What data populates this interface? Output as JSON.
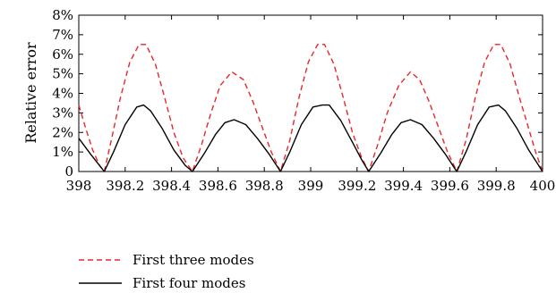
{
  "chart_data": {
    "type": "line",
    "title": "",
    "xlabel": "",
    "ylabel": "Relative error",
    "xlim": [
      398,
      400
    ],
    "ylim": [
      0,
      8
    ],
    "grid": false,
    "legend_position": "bottom-left",
    "x_ticks": [
      "398",
      "398.2",
      "398.4",
      "398.6",
      "398.8",
      "399",
      "399.2",
      "399.4",
      "399.6",
      "399.8",
      "400"
    ],
    "y_ticks": [
      "0",
      "1%",
      "2%",
      "3%",
      "4%",
      "5%",
      "6%",
      "7%",
      "8%"
    ],
    "series": [
      {
        "name": "First three modes",
        "color": "#e8272a",
        "style": "dashed",
        "x": [
          398.0,
          398.03,
          398.06,
          398.09,
          398.11,
          398.14,
          398.18,
          398.22,
          398.26,
          398.29,
          398.33,
          398.37,
          398.41,
          398.45,
          398.49,
          398.53,
          398.57,
          398.61,
          398.66,
          398.71,
          398.75,
          398.79,
          398.83,
          398.87,
          398.91,
          398.95,
          398.99,
          399.03,
          399.06,
          399.1,
          399.14,
          399.18,
          399.22,
          399.25,
          399.29,
          399.33,
          399.38,
          399.43,
          399.47,
          399.51,
          399.55,
          399.59,
          399.63,
          399.67,
          399.71,
          399.75,
          399.79,
          399.82,
          399.86,
          399.9,
          399.94,
          399.97,
          400.0
        ],
        "y": [
          3.4,
          2.2,
          1.1,
          0.3,
          0.0,
          1.6,
          3.8,
          5.6,
          6.5,
          6.5,
          5.5,
          3.8,
          2.0,
          0.7,
          0.0,
          1.4,
          3.0,
          4.4,
          5.1,
          4.7,
          3.6,
          2.3,
          1.0,
          0.0,
          1.6,
          3.8,
          5.6,
          6.5,
          6.5,
          5.5,
          3.8,
          2.0,
          0.7,
          0.0,
          1.4,
          3.0,
          4.4,
          5.1,
          4.7,
          3.6,
          2.3,
          1.0,
          0.0,
          1.6,
          3.8,
          5.6,
          6.5,
          6.5,
          5.5,
          3.8,
          2.2,
          1.0,
          0.0
        ]
      },
      {
        "name": "First four modes",
        "color": "#000000",
        "style": "solid",
        "x": [
          398.0,
          398.05,
          398.09,
          398.11,
          398.15,
          398.2,
          398.25,
          398.28,
          398.31,
          398.36,
          398.41,
          398.46,
          398.49,
          398.54,
          398.59,
          398.63,
          398.67,
          398.72,
          398.77,
          398.82,
          398.87,
          398.91,
          398.96,
          399.01,
          399.05,
          399.08,
          399.13,
          399.18,
          399.22,
          399.25,
          399.3,
          399.35,
          399.39,
          399.43,
          399.48,
          399.53,
          399.58,
          399.63,
          399.67,
          399.72,
          399.77,
          399.81,
          399.84,
          399.89,
          399.94,
          400.0
        ],
        "y": [
          1.7,
          0.9,
          0.3,
          0.0,
          1.0,
          2.4,
          3.3,
          3.4,
          3.1,
          2.2,
          1.1,
          0.3,
          0.0,
          0.9,
          1.9,
          2.5,
          2.65,
          2.4,
          1.7,
          0.9,
          0.0,
          1.0,
          2.4,
          3.3,
          3.4,
          3.4,
          2.6,
          1.5,
          0.6,
          0.0,
          0.9,
          1.9,
          2.5,
          2.65,
          2.4,
          1.7,
          0.9,
          0.0,
          1.0,
          2.4,
          3.3,
          3.4,
          3.1,
          2.2,
          1.1,
          0.0
        ]
      }
    ]
  }
}
